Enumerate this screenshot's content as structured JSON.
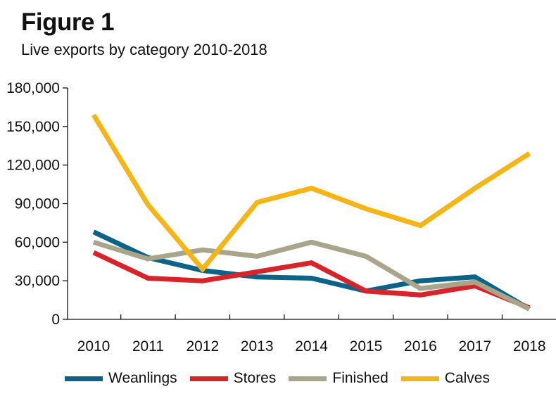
{
  "header": {
    "title": "Figure 1",
    "subtitle": "Live exports by category 2010-2018"
  },
  "chart_data": {
    "type": "line",
    "title": "Figure 1",
    "subtitle": "Live exports by category 2010-2018",
    "xlabel": "",
    "ylabel": "",
    "categories": [
      "2010",
      "2011",
      "2012",
      "2013",
      "2014",
      "2015",
      "2016",
      "2017",
      "2018"
    ],
    "ylim": [
      0,
      180000
    ],
    "yticks": [
      0,
      30000,
      60000,
      90000,
      120000,
      150000,
      180000
    ],
    "ytick_labels": [
      "0",
      "30,000",
      "60,000",
      "90,000",
      "120,000",
      "150,000",
      "180,000"
    ],
    "grid": false,
    "legend_position": "bottom",
    "series": [
      {
        "name": "Weanlings",
        "color": "#0b6387",
        "values": [
          68000,
          48000,
          38000,
          33000,
          32000,
          22000,
          30000,
          33000,
          8000
        ]
      },
      {
        "name": "Stores",
        "color": "#d7242a",
        "values": [
          52000,
          32000,
          30000,
          37000,
          44000,
          22000,
          19000,
          26000,
          9000
        ]
      },
      {
        "name": "Finished",
        "color": "#a8a58b",
        "values": [
          60000,
          47000,
          54000,
          49000,
          60000,
          49000,
          24000,
          29000,
          8000
        ]
      },
      {
        "name": "Calves",
        "color": "#f6b517",
        "values": [
          159000,
          89000,
          39000,
          91000,
          102000,
          86000,
          73000,
          102000,
          129000
        ]
      }
    ]
  }
}
